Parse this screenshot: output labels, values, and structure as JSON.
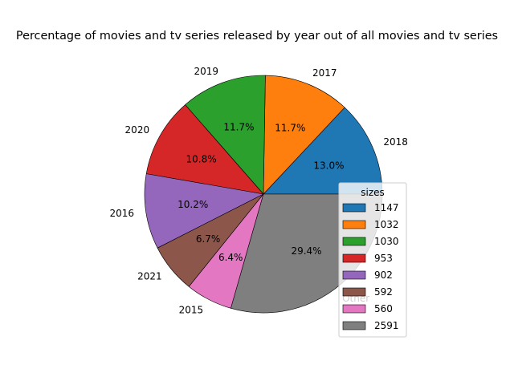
{
  "chart_data": {
    "type": "pie",
    "title": "Percentage of movies and tv series released by year out of all movies and tv series",
    "labels": [
      "2018",
      "2017",
      "2019",
      "2020",
      "2016",
      "2021",
      "2015",
      "Other"
    ],
    "values": [
      1147,
      1032,
      1030,
      953,
      902,
      592,
      560,
      2591
    ],
    "percent_labels": [
      "13.0%",
      "11.7%",
      "11.7%",
      "10.8%",
      "10.2%",
      "6.7%",
      "6.4%",
      "29.4%"
    ],
    "colors": [
      "#1f77b4",
      "#ff7f0e",
      "#2ca02c",
      "#d62728",
      "#9467bd",
      "#8c564b",
      "#e377c2",
      "#7f7f7f"
    ],
    "legend": {
      "title": "sizes",
      "entries": [
        "1147",
        "1032",
        "1030",
        "953",
        "902",
        "592",
        "560",
        "2591"
      ],
      "placement": "lower-right"
    }
  }
}
